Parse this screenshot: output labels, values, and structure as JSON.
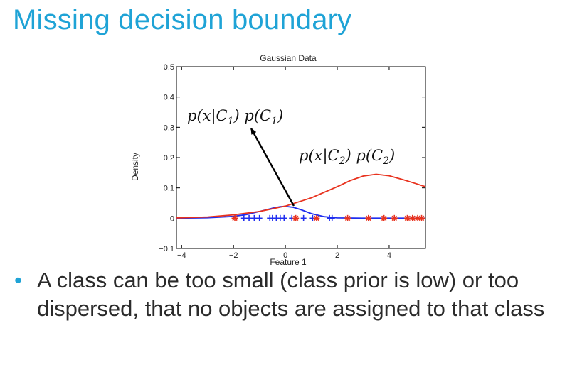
{
  "slide": {
    "title": "Missing decision boundary",
    "bullet_marker": "•",
    "bullet": "A class can be too small (class prior is low) or too dispersed, that no objects are assigned to that class"
  },
  "colors": {
    "title": "#1fa3d6",
    "class1": "#1f2eef",
    "class2": "#e8321e",
    "text": "#2b2b2b"
  },
  "chart_data": {
    "type": "line",
    "title": "Gaussian Data",
    "xlabel": "Feature 1",
    "ylabel": "Density",
    "xlim": [
      -4.2,
      5.4
    ],
    "ylim": [
      -0.1,
      0.5
    ],
    "xticks": [
      -4,
      -2,
      0,
      2,
      4
    ],
    "yticks": [
      -0.1,
      0,
      0.1,
      0.2,
      0.3,
      0.4,
      0.5
    ],
    "grid": false,
    "series": [
      {
        "type": "line",
        "color": "#1f2eef",
        "x": [
          -4.2,
          -3,
          -2,
          -1.5,
          -1,
          -0.5,
          -0.2,
          0,
          0.3,
          0.6,
          1,
          1.5,
          2,
          3,
          4,
          5.4
        ],
        "y": [
          0.0,
          0.0015,
          0.006,
          0.012,
          0.022,
          0.033,
          0.038,
          0.039,
          0.036,
          0.028,
          0.015,
          0.005,
          0.001,
          0.0,
          0.0,
          0.0
        ]
      },
      {
        "type": "line",
        "color": "#e8321e",
        "x": [
          -4.2,
          -3,
          -2,
          -1,
          0,
          1,
          2,
          2.5,
          3,
          3.5,
          4,
          4.5,
          5,
          5.4
        ],
        "y": [
          0.001,
          0.004,
          0.011,
          0.022,
          0.04,
          0.067,
          0.104,
          0.124,
          0.139,
          0.145,
          0.14,
          0.128,
          0.115,
          0.104
        ]
      },
      {
        "type": "scatter",
        "marker": "plus",
        "color": "#1f2eef",
        "x": [
          -1.6,
          -1.4,
          -1.2,
          -1.0,
          -0.6,
          -0.5,
          -0.35,
          -0.2,
          -0.05,
          0.25,
          0.7,
          1.05,
          1.7,
          1.8
        ],
        "y": [
          0,
          0,
          0,
          0,
          0,
          0,
          0,
          0,
          0,
          0,
          0,
          0,
          0,
          0
        ]
      },
      {
        "type": "scatter",
        "marker": "star",
        "color": "#e8321e",
        "x": [
          -1.95,
          0.4,
          1.2,
          2.4,
          3.2,
          3.8,
          4.2,
          4.7,
          4.9,
          5.1,
          5.25
        ],
        "y": [
          0,
          0,
          0,
          0,
          0,
          0,
          0,
          0,
          0,
          0,
          0
        ]
      }
    ],
    "annotations": [
      {
        "label": "p(x|C1) p(C1)"
      },
      {
        "label": "p(x|C2) p(C2)"
      }
    ]
  }
}
